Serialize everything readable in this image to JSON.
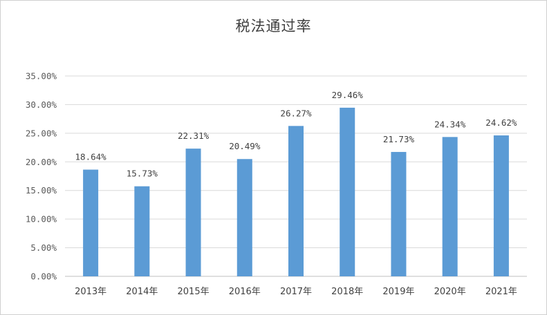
{
  "colors": {
    "bar": "#5b9bd5",
    "grid": "#d9d9d9",
    "axis": "#bfbfbf",
    "text": "#595959"
  },
  "chart_data": {
    "type": "bar",
    "title": "税法通过率",
    "xlabel": "",
    "ylabel": "",
    "categories": [
      "2013年",
      "2014年",
      "2015年",
      "2016年",
      "2017年",
      "2018年",
      "2019年",
      "2020年",
      "2021年"
    ],
    "values": [
      18.64,
      15.73,
      22.31,
      20.49,
      26.27,
      29.46,
      21.73,
      24.34,
      24.62
    ],
    "value_labels": [
      "18.64%",
      "15.73%",
      "22.31%",
      "20.49%",
      "26.27%",
      "29.46%",
      "21.73%",
      "24.34%",
      "24.62%"
    ],
    "ylim": [
      0,
      35
    ],
    "yticks": [
      0,
      5,
      10,
      15,
      20,
      25,
      30,
      35
    ],
    "ytick_labels": [
      "0.00%",
      "5.00%",
      "10.00%",
      "15.00%",
      "20.00%",
      "25.00%",
      "30.00%",
      "35.00%"
    ],
    "grid": true,
    "legend": "none"
  }
}
